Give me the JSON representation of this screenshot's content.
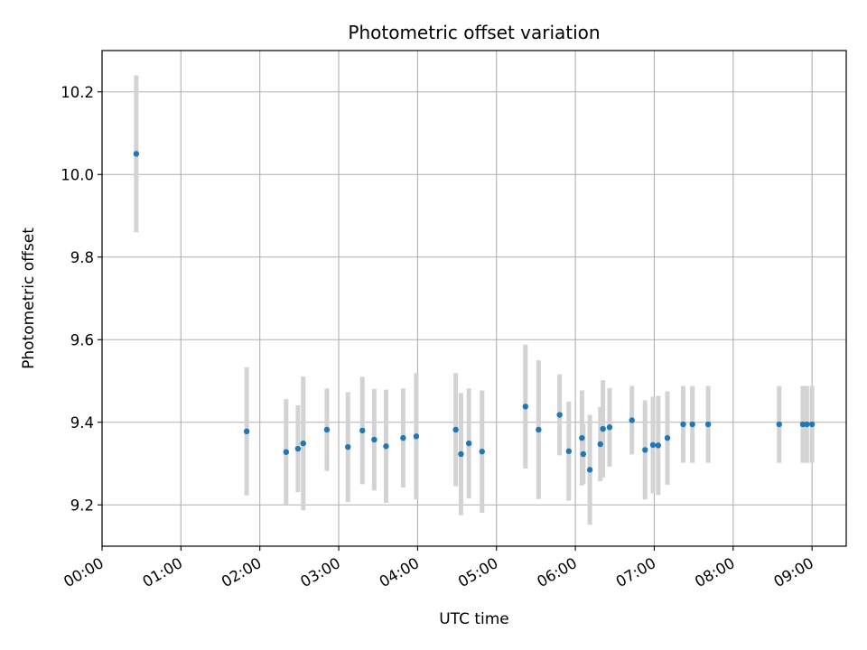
{
  "chart_data": {
    "type": "scatter",
    "title": "Photometric offset variation",
    "xlabel": "UTC time",
    "ylabel": "Photometric offset",
    "x_unit": "hours UTC",
    "xlim": [
      "00:00",
      "09:26"
    ],
    "ylim": [
      9.1,
      10.3
    ],
    "grid": true,
    "x_ticks": [
      "00:00",
      "01:00",
      "02:00",
      "03:00",
      "04:00",
      "05:00",
      "06:00",
      "07:00",
      "08:00",
      "09:00"
    ],
    "y_ticks": [
      "9.2",
      "9.4",
      "9.6",
      "9.8",
      "10.0",
      "10.2"
    ],
    "marker_color": "#1f77b4",
    "errorbar_color": "#d3d3d3",
    "series": [
      {
        "points": [
          {
            "x": "00:26",
            "y": 10.05,
            "err": 0.19
          },
          {
            "x": "01:50",
            "y": 9.378,
            "err": 0.155
          },
          {
            "x": "02:20",
            "y": 9.328,
            "err": 0.128
          },
          {
            "x": "02:29",
            "y": 9.336,
            "err": 0.105
          },
          {
            "x": "02:33",
            "y": 9.349,
            "err": 0.162
          },
          {
            "x": "02:51",
            "y": 9.382,
            "err": 0.1
          },
          {
            "x": "03:07",
            "y": 9.34,
            "err": 0.133
          },
          {
            "x": "03:18",
            "y": 9.38,
            "err": 0.13
          },
          {
            "x": "03:27",
            "y": 9.358,
            "err": 0.123
          },
          {
            "x": "03:36",
            "y": 9.342,
            "err": 0.137
          },
          {
            "x": "03:49",
            "y": 9.362,
            "err": 0.12
          },
          {
            "x": "03:59",
            "y": 9.366,
            "err": 0.153
          },
          {
            "x": "04:29",
            "y": 9.382,
            "err": 0.137
          },
          {
            "x": "04:33",
            "y": 9.323,
            "err": 0.148
          },
          {
            "x": "04:39",
            "y": 9.349,
            "err": 0.133
          },
          {
            "x": "04:49",
            "y": 9.329,
            "err": 0.148
          },
          {
            "x": "05:22",
            "y": 9.438,
            "err": 0.15
          },
          {
            "x": "05:32",
            "y": 9.382,
            "err": 0.168
          },
          {
            "x": "05:48",
            "y": 9.418,
            "err": 0.098
          },
          {
            "x": "05:55",
            "y": 9.33,
            "err": 0.12
          },
          {
            "x": "06:05",
            "y": 9.362,
            "err": 0.115
          },
          {
            "x": "06:06",
            "y": 9.323,
            "err": 0.072
          },
          {
            "x": "06:11",
            "y": 9.285,
            "err": 0.133
          },
          {
            "x": "06:19",
            "y": 9.347,
            "err": 0.09
          },
          {
            "x": "06:21",
            "y": 9.384,
            "err": 0.118
          },
          {
            "x": "06:26",
            "y": 9.388,
            "err": 0.095
          },
          {
            "x": "06:43",
            "y": 9.405,
            "err": 0.083
          },
          {
            "x": "06:53",
            "y": 9.333,
            "err": 0.12
          },
          {
            "x": "06:59",
            "y": 9.345,
            "err": 0.117
          },
          {
            "x": "07:03",
            "y": 9.344,
            "err": 0.12
          },
          {
            "x": "07:10",
            "y": 9.362,
            "err": 0.113
          },
          {
            "x": "07:22",
            "y": 9.395,
            "err": 0.093
          },
          {
            "x": "07:29",
            "y": 9.395,
            "err": 0.093
          },
          {
            "x": "07:41",
            "y": 9.395,
            "err": 0.093
          },
          {
            "x": "08:35",
            "y": 9.395,
            "err": 0.093
          },
          {
            "x": "08:53",
            "y": 9.395,
            "err": 0.093
          },
          {
            "x": "08:56",
            "y": 9.395,
            "err": 0.093
          },
          {
            "x": "09:00",
            "y": 9.395,
            "err": 0.093
          }
        ]
      }
    ]
  }
}
